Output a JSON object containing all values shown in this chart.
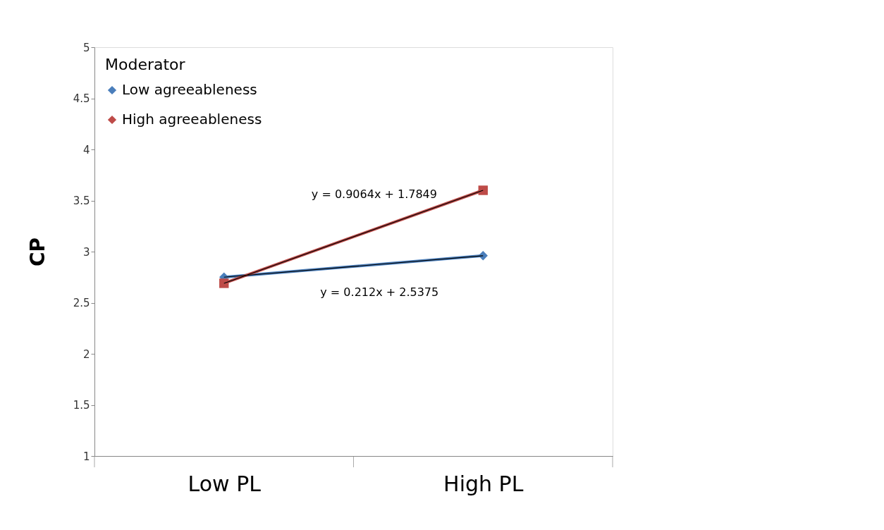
{
  "chart_data": {
    "type": "line",
    "categories": [
      "Low PL",
      "High PL"
    ],
    "ylabel": "CP",
    "legend_title": "Moderator",
    "series": [
      {
        "name": "Low agreeableness",
        "color": "#4a7ebb",
        "values": [
          2.75,
          2.96
        ],
        "marker": "diamond"
      },
      {
        "name": "High agreeableness",
        "color": "#be4b48",
        "values": [
          2.69,
          3.6
        ],
        "marker": "square"
      },
      {
        "type": "line",
        "color": "#000000",
        "values": [
          2.69,
          3.6
        ],
        "marker": "none"
      },
      {
        "type": "line",
        "color": "#000000",
        "values": [
          2.75,
          2.96
        ],
        "marker": "none"
      }
    ],
    "annotations": [
      "y = 0.9064x + 1.7849",
      "y = 0.212x + 2.5375"
    ],
    "ylim": [
      1,
      5
    ],
    "yticks": [
      1,
      1.5,
      2,
      2.5,
      3,
      3.5,
      4,
      4.5,
      5
    ],
    "grid": false,
    "legend": "top left"
  }
}
